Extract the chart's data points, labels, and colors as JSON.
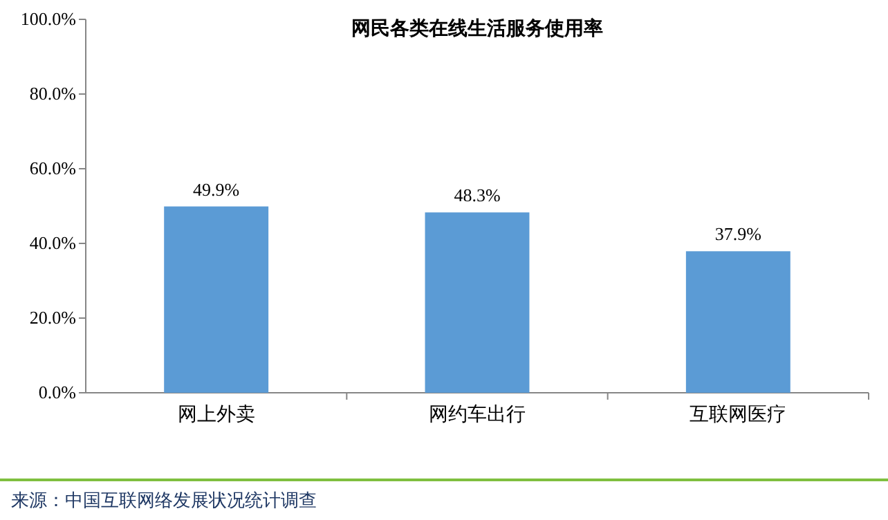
{
  "chart_data": {
    "type": "bar",
    "title": "网民各类在线生活服务使用率",
    "categories": [
      "网上外卖",
      "网约车出行",
      "互联网医疗"
    ],
    "values": [
      49.9,
      48.3,
      37.9
    ],
    "value_labels": [
      "49.9%",
      "48.3%",
      "37.9%"
    ],
    "color": "#5b9bd5",
    "ylim": [
      0,
      100
    ],
    "yticks": [
      {
        "value": 0,
        "label": "0.0%"
      },
      {
        "value": 20,
        "label": "20.0%"
      },
      {
        "value": 40,
        "label": "40.0%"
      },
      {
        "value": 60,
        "label": "60.0%"
      },
      {
        "value": 80,
        "label": "80.0%"
      },
      {
        "value": 100,
        "label": "100.0%"
      }
    ],
    "grid": false,
    "annotations": [
      "来源：中国互联网络发展状况统计调查"
    ]
  }
}
